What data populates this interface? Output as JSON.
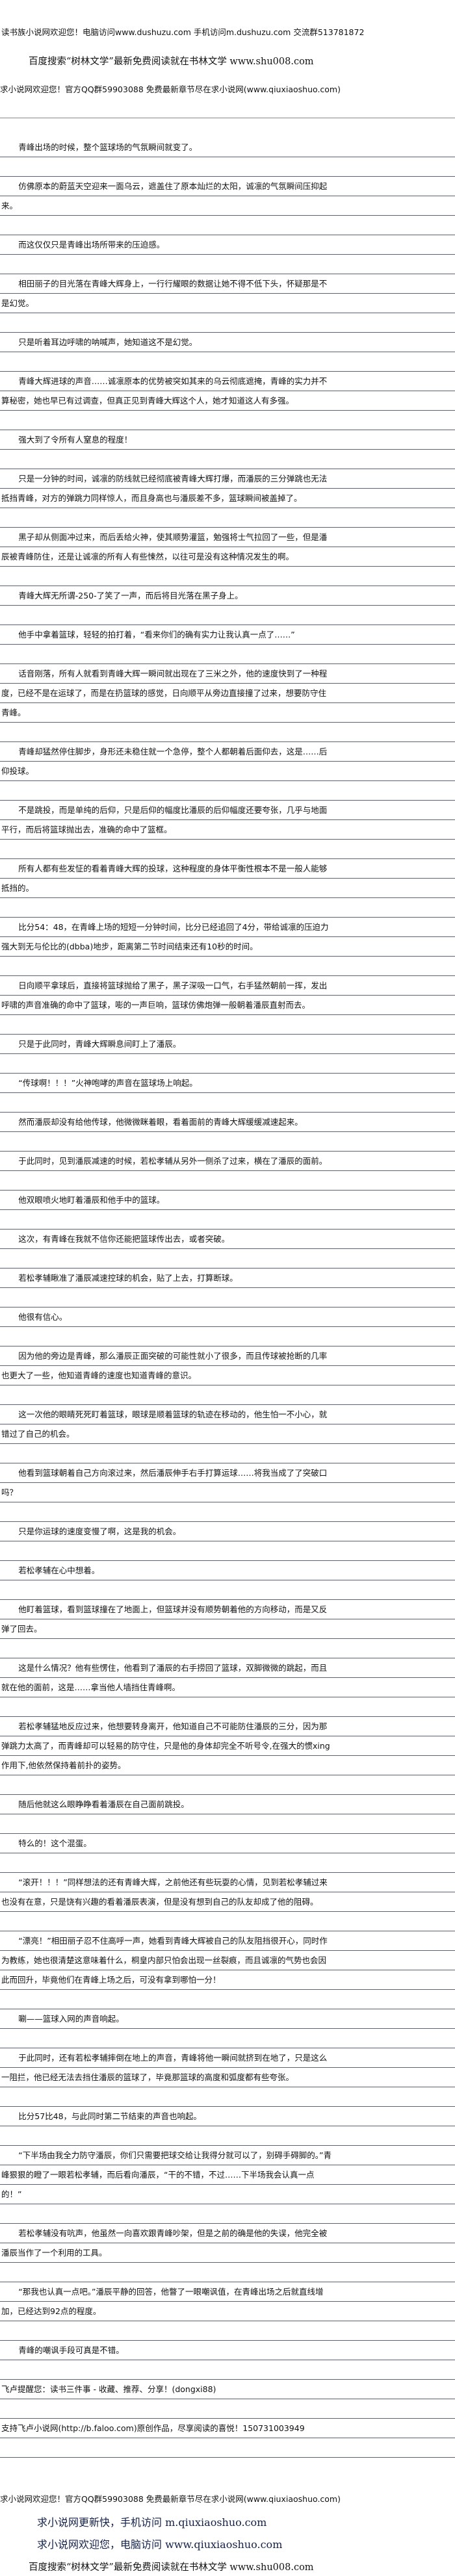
{
  "header": {
    "line1": "读书族小说网欢迎您！电脑访问www.dushuzu.com 手机访问m.dushuzu.com 交流群513781872",
    "line2": "百度搜索“树林文学”最新免费阅读就在书林文学 www.shu008.com",
    "line3": "求小说网欢迎您！官方QQ群59903088 免费最新章节尽在求小说网(www.qiuxiaoshuo.com)"
  },
  "paragraphs": [
    "青峰出场的时候，整个篮球场的气氛瞬间就变了。",
    "仿佛原本的蔚蓝天空迎来一面乌云，遮盖住了原本灿烂的太阳，诚凛的气氛瞬间压抑起来。",
    "而这仅仅只是青峰出场所带来的压迫感。",
    "相田丽子的目光落在青峰大辉身上，一行行耀眼的数据让她不得不低下头，怀疑那是不是幻觉。",
    "只是听着耳边呼啸的呐喊声，她知道这不是幻觉。",
    "青峰大辉进球的声音……诚凛原本的优势被突如其来的乌云彻底遮掩，青峰的实力并不算秘密，她也早已有过调查，但真正见到青峰大辉这个人，她才知道这人有多强。",
    "强大到了令所有人窒息的程度！",
    "只是一分钟的时间，诚凛的防线就已经彻底被青峰大辉打爆，而潘辰的三分弹跳也无法抵挡青峰，对方的弹跳力同样惊人，而且身高也与潘辰差不多，篮球瞬间被盖掉了。",
    "黑子却从侧面冲过来，而后丢给火神，使其顺势灌篮，勉强将士气拉回了一些，但是潘辰被青峰防住，还是让诚凛的所有人有些悚然，以往可是没有这种情况发生的啊。",
    "青峰大辉无所谓-250-了笑了一声，而后将目光落在黑子身上。",
    "他手中拿着篮球，轻轻的拍打着，“看来你们的确有实力让我认真一点了……”",
    "话音刚落，所有人就看到青峰大辉一瞬间就出现在了三米之外，他的速度快到了一种程度，已经不是在运球了，而是在扔篮球的感觉，日向顺平从旁边直接撞了过来，想要防守住青峰。",
    "青峰却猛然停住脚步，身形还未稳住就一个急停，整个人都朝着后面仰去，这是……后仰投球。",
    "不是跳投，而是单纯的后仰，只是后仰的幅度比潘辰的后仰幅度还要夸张，几乎与地面平行，而后将篮球抛出去，准确的命中了篮框。",
    "所有人都有些发怔的看着青峰大辉的投球，这种程度的身体平衡性根本不是一般人能够抵挡的。",
    "比分54：48，在青峰上场的短短一分钟时间，比分已经追回了4分，带给诚凛的压迫力强大到无与伦比的(dbba)地步，距离第二节时间结束还有10秒的时间。",
    "日向顺平拿球后，直接将篮球抛给了黑子，黑子深吸一口气，右手猛然朝前一挥，发出呼啸的声音准确的命中了篮球，嘭的一声巨响，篮球仿佛炮弹一般朝着潘辰直射而去。",
    "只是于此同时，青峰大辉瞬息间盯上了潘辰。",
    "“传球啊！！！”火神咆哮的声音在篮球场上响起。",
    "然而潘辰却没有给他传球，他微微眯着眼，看着面前的青峰大辉缓缓减速起来。",
    "于此同时，见到潘辰减速的时候，若松孝辅从另外一侧杀了过来，横在了潘辰的面前。",
    "他双眼喷火地盯着潘辰和他手中的篮球。",
    "这次，有青峰在我就不信你还能把篮球传出去，或者突破。",
    "若松孝辅瞅准了潘辰减速控球的机会，贴了上去，打算断球。",
    "他很有信心。",
    "因为他的旁边是青峰，那么潘辰正面突破的可能性就小了很多，而且传球被抢断的几率也更大了一些，他知道青峰的速度也知道青峰的意识。",
    "这一次他的眼睛死死盯着篮球，眼球是顺着篮球的轨迹在移动的，他生怕一不小心，就错过了自己的机会。",
    "他看到篮球朝着自己方向滚过来，然后潘辰伸手右手打算运球……将我当成了了突破口吗？",
    "只是你运球的速度变慢了啊，这是我的机会。",
    "若松孝辅在心中想着。",
    "他盯着篮球，看到篮球撞在了地面上，但篮球并没有顺势朝着他的方向移动，而是又反弹了回去。",
    "这是什么情况？他有些愣住，他看到了潘辰的右手捞回了篮球，双脚微微的跳起，而且就在他的面前，这是……拿当他人墙挡住青峰啊。",
    "若松孝辅猛地反应过来，他想要转身离开，他知道自己不可能防住潘辰的三分，因为那弹跳力太高了，而青峰却可以轻易的防守住，只是他的身体却完全不听号令,在强大的惯xing作用下,他依然保持着前扑的姿势。",
    "随后他就这么眼睁睁看着潘辰在自己面前跳投。",
    "特么的！这个混蛋。",
    "“滚开！！！”同样想法的还有青峰大辉，之前他还有些玩耍的心情，见到若松孝辅过来也没有在意，只是饶有兴趣的看着潘辰表演，但是没有想到自己的队友却成了他的阻碍。",
    "“漂亮！”相田丽子忍不住高呼一声，她看到青峰大辉被自己的队友阻挡很开心，同时作为教练，她也很清楚这意味着什么，桐皇内部只怕会出现一丝裂痕，而且诚凛的气势也会因此而回升，毕竟他们在青峰上场之后，可没有拿到哪怕一分！",
    "唰——篮球入网的声音响起。",
    "于此同时，还有若松孝辅摔倒在地上的声音，青峰将他一瞬间就挤到在地了，只是这么一阻拦，他已经无法去挡住潘辰的篮球了，毕竟那篮球的高度和弧度都有些夸张。",
    "比分57比48，与此同时第二节结束的声音也响起。",
    "“下半场由我全力防守潘辰，你们只需要把球交给让我得分就可以了，别碍手碍脚的。”青峰狠狠的瞪了一眼若松孝辅，而后看向潘辰，“干的不错，不过……下半场我会认真一点的！”",
    "若松孝辅没有吭声，他虽然一向喜欢跟青峰吵架，但是之前的确是他的失误，他完全被潘辰当作了一个利用的工具。",
    "“那我也认真一点吧。”潘辰平静的回答，他瞥了一眼嘲讽值，在青峰出场之后就直线增加，已经达到92点的程度。",
    "青峰的嘲讽手段可真是不错。"
  ],
  "notes": [
    "飞卢提醒您：读书三件事 - 收藏、推荐、分享！(dongxi88)",
    "支持飞卢小说网(http://b.faloo.com)原创作品，尽享阅读的喜悦！150731003949"
  ],
  "footer": {
    "line1": "求小说网欢迎您！官方QQ群59903088 免费最新章节尽在求小说网(www.qiuxiaoshuo.com)",
    "line2": "求小说网更新快，手机访问 m.qiuxiaoshuo.com",
    "line3": "求小说网欢迎您，电脑访问 www.qiuxiaoshuo.com",
    "line4": "百度搜索“树林文学”最新免费阅读就在书林文学 www.shu008.com"
  }
}
